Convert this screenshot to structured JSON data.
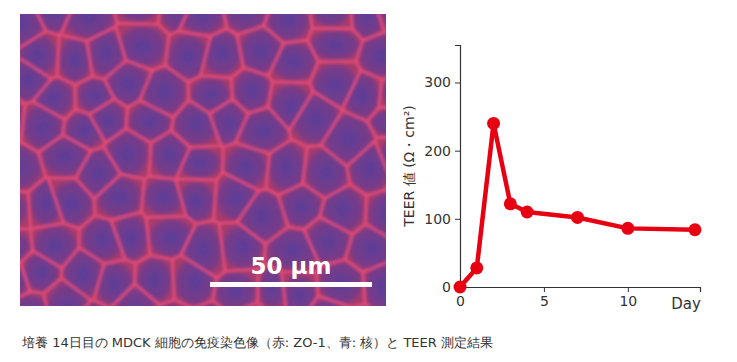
{
  "chart_data": {
    "type": "line",
    "y_label": "TEER 値 (Ω・cm²)",
    "x_label": "Day",
    "x": [
      0,
      1,
      2,
      3,
      4,
      7,
      10,
      14
    ],
    "values": [
      0,
      28,
      240,
      122,
      110,
      102,
      86,
      84
    ],
    "color": "#e60012",
    "marker": "circle",
    "xlim": [
      0,
      14.3
    ],
    "ylim": [
      0,
      355
    ],
    "xticks": [
      0,
      5,
      10
    ],
    "yticks": [
      0,
      100,
      200,
      300
    ],
    "grid": false
  },
  "image": {
    "scale_bar_label": "50 μm"
  },
  "caption": "培養 14日目の MDCK 細胞の免疫染色像（赤: ZO-1、青: 核）と TEER 測定結果"
}
